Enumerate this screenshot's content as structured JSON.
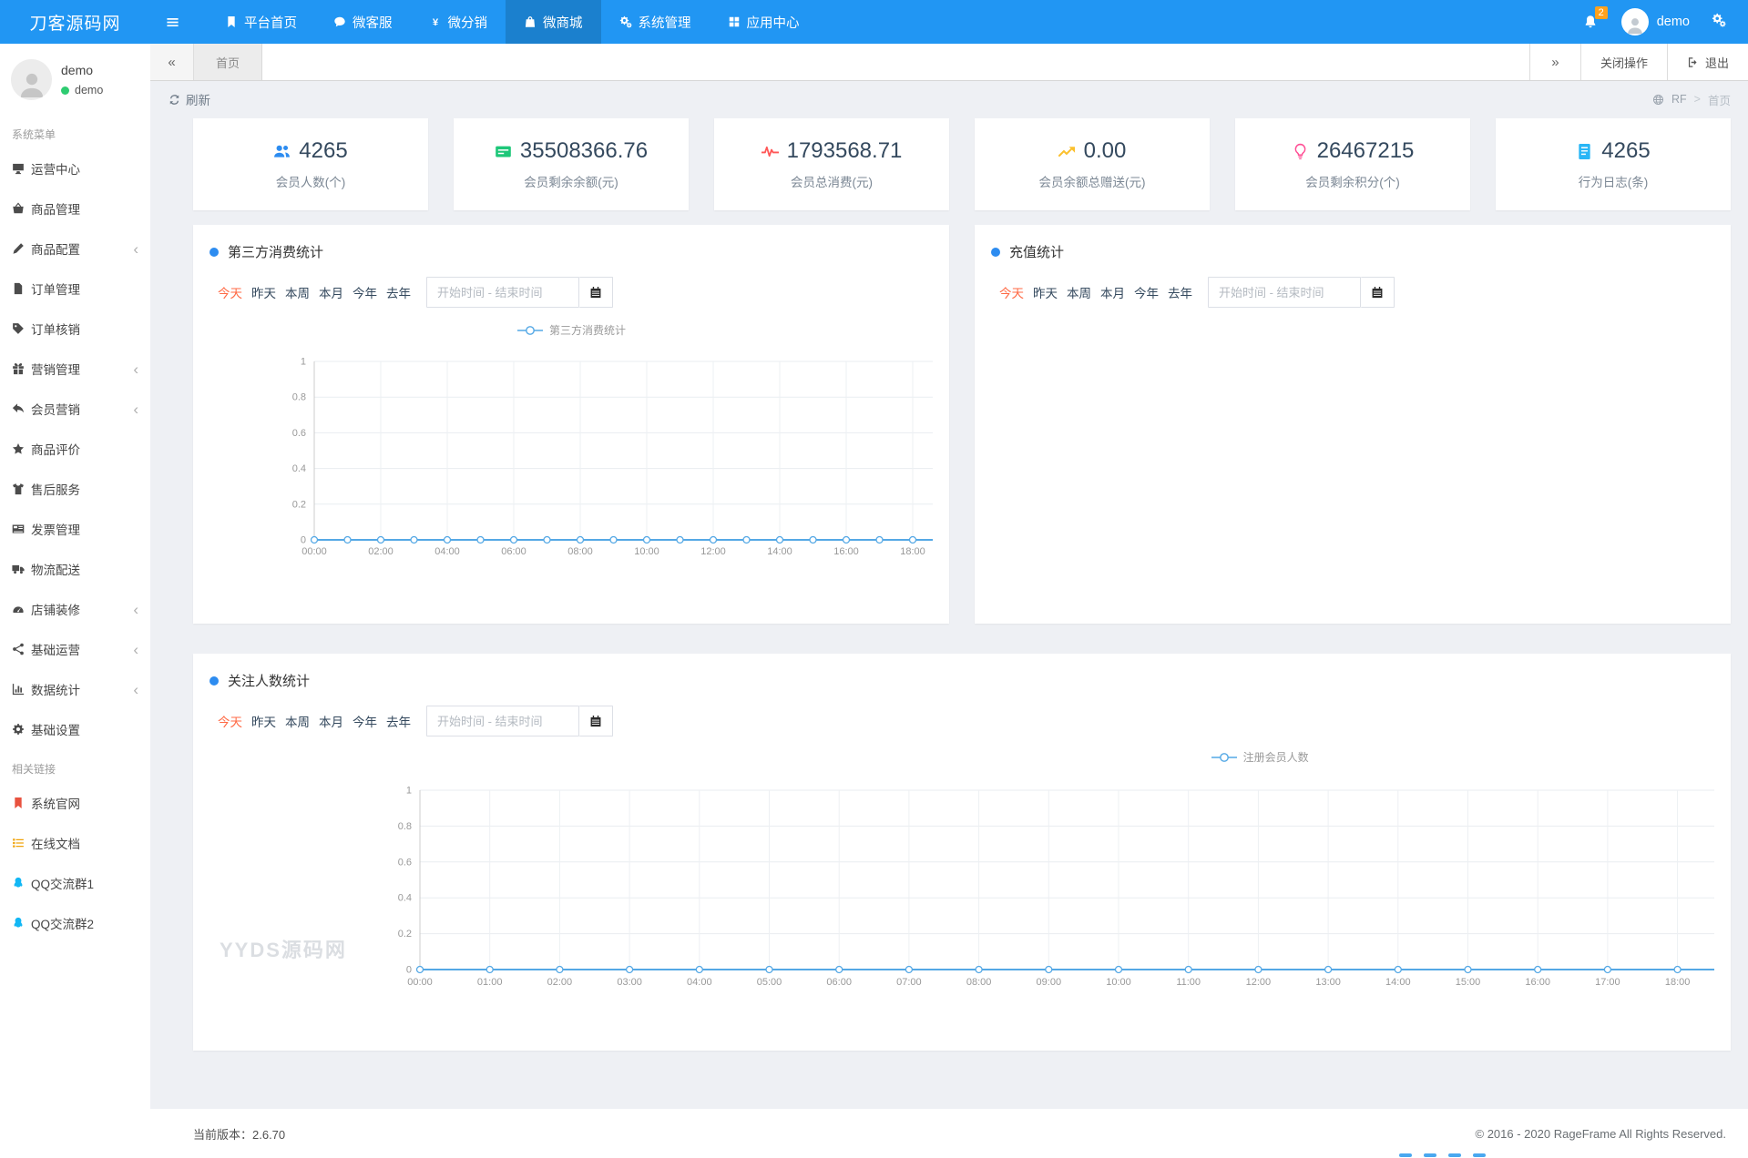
{
  "navbar": {
    "brand": "刀客源码网",
    "menu": [
      {
        "label": "平台首页",
        "icon": "bookmark-icon",
        "active": false
      },
      {
        "label": "微客服",
        "icon": "chat-icon",
        "active": false
      },
      {
        "label": "微分销",
        "icon": "yen-icon",
        "active": false
      },
      {
        "label": "微商城",
        "icon": "bag-icon",
        "active": true
      },
      {
        "label": "系统管理",
        "icon": "gears-icon",
        "active": false
      },
      {
        "label": "应用中心",
        "icon": "grid-icon",
        "active": false
      }
    ],
    "notification_count": "2",
    "username": "demo"
  },
  "sidebar": {
    "user_name": "demo",
    "user_status": "demo",
    "sections": [
      {
        "title": "系统菜单",
        "items": [
          {
            "label": "运营中心",
            "icon": "monitor-icon",
            "expandable": false
          },
          {
            "label": "商品管理",
            "icon": "basket-icon",
            "expandable": false
          },
          {
            "label": "商品配置",
            "icon": "pencil-icon",
            "expandable": true
          },
          {
            "label": "订单管理",
            "icon": "file-icon",
            "expandable": false
          },
          {
            "label": "订单核销",
            "icon": "tags-icon",
            "expandable": false
          },
          {
            "label": "营销管理",
            "icon": "gift-icon",
            "expandable": true
          },
          {
            "label": "会员营销",
            "icon": "reply-icon",
            "expandable": true
          },
          {
            "label": "商品评价",
            "icon": "star-icon",
            "expandable": false
          },
          {
            "label": "售后服务",
            "icon": "tshirt-icon",
            "expandable": false
          },
          {
            "label": "发票管理",
            "icon": "newspaper-icon",
            "expandable": false
          },
          {
            "label": "物流配送",
            "icon": "truck-icon",
            "expandable": false
          },
          {
            "label": "店铺装修",
            "icon": "dashboard-icon",
            "expandable": true
          },
          {
            "label": "基础运营",
            "icon": "share-icon",
            "expandable": true
          },
          {
            "label": "数据统计",
            "icon": "chart-icon",
            "expandable": true
          },
          {
            "label": "基础设置",
            "icon": "gear-icon",
            "expandable": false
          }
        ]
      },
      {
        "title": "相关链接",
        "items": [
          {
            "label": "系统官网",
            "icon": "bookmark-red-icon",
            "color": "#e8523f"
          },
          {
            "label": "在线文档",
            "icon": "doc-list-icon",
            "color": "#f0a30a"
          },
          {
            "label": "QQ交流群1",
            "icon": "qq-icon",
            "color": "#12b7f5"
          },
          {
            "label": "QQ交流群2",
            "icon": "qq-icon",
            "color": "#12b7f5"
          }
        ]
      }
    ]
  },
  "tabbar": {
    "back": "«",
    "tab_home": "首页",
    "forward": "»",
    "close_actions": "关闭操作",
    "logout": "退出"
  },
  "toolbar": {
    "refresh_label": "刷新",
    "breadcrumb_root": "RF",
    "breadcrumb_sep": ">",
    "breadcrumb_current": "首页"
  },
  "stats": [
    {
      "value": "4265",
      "label": "会员人数(个)",
      "icon": "users-icon",
      "color": "#2d8cf0"
    },
    {
      "value": "35508366.76",
      "label": "会员剩余余额(元)",
      "icon": "money-icon",
      "color": "#1dc779"
    },
    {
      "value": "1793568.71",
      "label": "会员总消费(元)",
      "icon": "pulse-icon",
      "color": "#ff5757"
    },
    {
      "value": "0.00",
      "label": "会员余额总赠送(元)",
      "icon": "trend-icon",
      "color": "#fbc02d"
    },
    {
      "value": "26467215",
      "label": "会员剩余积分(个)",
      "icon": "bulb-icon",
      "color": "#ff4d94"
    },
    {
      "value": "4265",
      "label": "行为日志(条)",
      "icon": "log-icon",
      "color": "#29b6f6"
    }
  ],
  "filters": {
    "ranges": [
      "今天",
      "昨天",
      "本周",
      "本月",
      "今年",
      "去年"
    ],
    "active": "今天",
    "date_placeholder": "开始时间 - 结束时间"
  },
  "watermark": {
    "text": "YYDS源码网"
  },
  "footer": {
    "version": "当前版本：2.6.70",
    "copyright": "© 2016 - 2020 RageFrame All Rights Reserved."
  },
  "chart_data": [
    {
      "type": "line",
      "title": "第三方消费统计",
      "legend_position": "top-center",
      "x_labels": [
        "00:00",
        "02:00",
        "04:00",
        "06:00",
        "08:00",
        "10:00",
        "12:00",
        "14:00",
        "16:00",
        "18:00"
      ],
      "marker_interval": "1h",
      "series": [
        {
          "name": "第三方消费统计",
          "values": [
            0,
            0,
            0,
            0,
            0,
            0,
            0,
            0,
            0,
            0,
            0,
            0,
            0,
            0,
            0,
            0,
            0,
            0,
            0,
            0
          ]
        }
      ],
      "ylim": [
        0,
        1
      ],
      "yticks": [
        0,
        0.2,
        0.4,
        0.6,
        0.8,
        1
      ],
      "grid": true
    },
    {
      "type": "line",
      "title": "充值统计",
      "x_labels": [],
      "series": [],
      "note_rendered": false
    },
    {
      "type": "line",
      "title": "关注人数统计",
      "legend_position": "top-right",
      "x_labels": [
        "00:00",
        "01:00",
        "02:00",
        "03:00",
        "04:00",
        "05:00",
        "06:00",
        "07:00",
        "08:00",
        "09:00",
        "10:00",
        "11:00",
        "12:00",
        "13:00",
        "14:00",
        "15:00",
        "16:00",
        "17:00",
        "18:00"
      ],
      "marker_interval": "1h",
      "series": [
        {
          "name": "注册会员人数",
          "values": [
            0,
            0,
            0,
            0,
            0,
            0,
            0,
            0,
            0,
            0,
            0,
            0,
            0,
            0,
            0,
            0,
            0,
            0,
            0,
            0
          ]
        }
      ],
      "ylim": [
        0,
        1
      ],
      "yticks": [
        0,
        0.2,
        0.4,
        0.6,
        0.8,
        1
      ],
      "grid": true
    }
  ]
}
